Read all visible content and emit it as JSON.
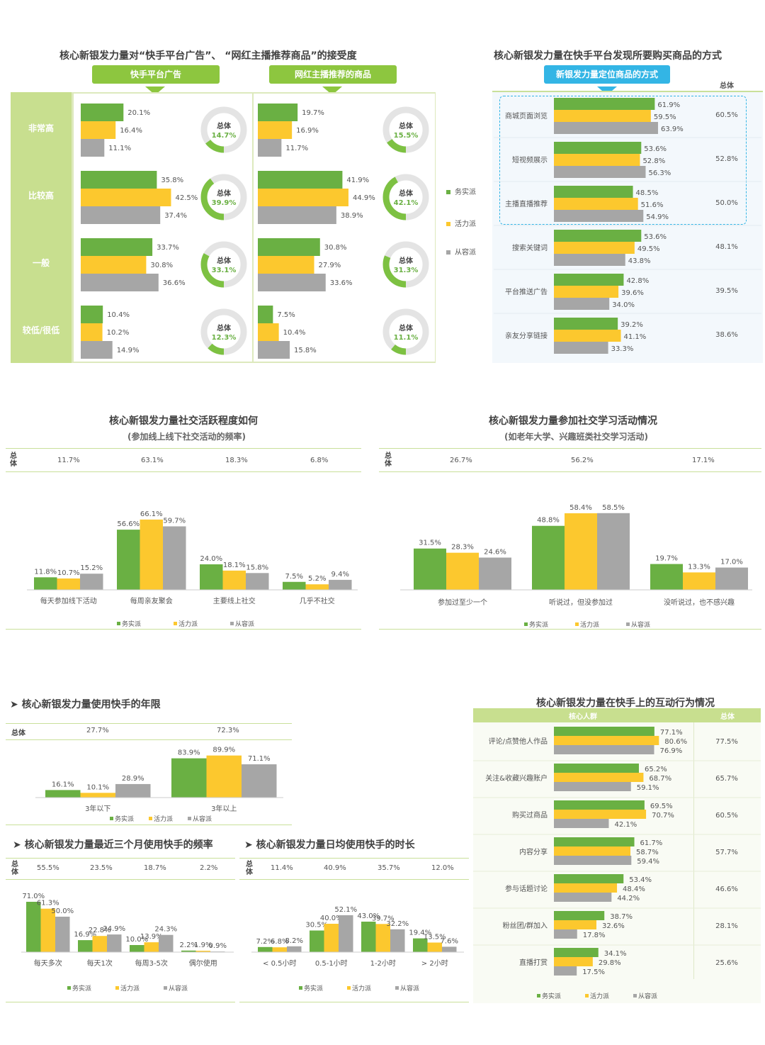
{
  "colors": {
    "work": "#6ab043",
    "vital": "#fcc82e",
    "content": "#a6a6a6",
    "accent": "#8dc63f",
    "blue": "#33b5e5",
    "panel": "#dde9bd"
  },
  "legend": [
    "务实派",
    "活力派",
    "从容派"
  ],
  "panel1": {
    "title": "核心新银发力量对“快手平台广告”、 “网红主播推荐商品”的接受度",
    "col_headers": [
      "快手平台广告",
      "网红主播推荐的商品"
    ],
    "rows": [
      "非常高",
      "比较高",
      "一般",
      "较低/很低"
    ],
    "total_label": "总体"
  },
  "panel2": {
    "title": "核心新银发力量在快手平台发现所要购买商品的方式",
    "header": "新银发力量定位商品的方式",
    "total_header": "总体",
    "categories": [
      "商城页面浏览",
      "短视频展示",
      "主播直播推荐",
      "搜索关键词",
      "平台推送广告",
      "亲友分享链接"
    ],
    "totals": [
      "60.5%",
      "52.8%",
      "50.0%",
      "48.1%",
      "39.5%",
      "38.6%"
    ]
  },
  "panel3": {
    "title": "核心新银发力量社交活跃程度如何",
    "subtitle": "(参加线上线下社交活动的频率)",
    "total_label": "总体",
    "totals": [
      "11.7%",
      "63.1%",
      "18.3%",
      "6.8%"
    ]
  },
  "panel4": {
    "title": "核心新银发力量参加社交学习活动情况",
    "subtitle": "(如老年大学、兴趣班类社交学习活动)",
    "total_label": "总体",
    "totals": [
      "26.7%",
      "56.2%",
      "17.1%"
    ]
  },
  "panel5": {
    "title": "核心新银发力量使用快手的年限",
    "total_label": "总体",
    "totals": [
      "27.7%",
      "72.3%"
    ]
  },
  "panel6": {
    "title": "核心新银发力量最近三个月使用快手的频率",
    "total_label": "总体",
    "totals": [
      "55.5%",
      "23.5%",
      "18.7%",
      "2.2%"
    ]
  },
  "panel7": {
    "title": "核心新银发力量日均使用快手的时长",
    "total_label": "总体",
    "totals": [
      "11.4%",
      "40.9%",
      "35.7%",
      "12.0%"
    ]
  },
  "panel8": {
    "title": "核心新银发力量在快手上的互动行为情况",
    "header_core": "核心人群",
    "header_total": "总体",
    "categories": [
      "评论/点赞他人作品",
      "关注&收藏兴趣账户",
      "购买过商品",
      "内容分享",
      "参与话题讨论",
      "粉丝团/群加入",
      "直播打赏"
    ],
    "totals": [
      "77.5%",
      "65.7%",
      "60.5%",
      "57.7%",
      "46.6%",
      "28.1%",
      "25.6%"
    ]
  },
  "chart_data": [
    {
      "type": "bar",
      "title": "快手平台广告",
      "categories": [
        "非常高",
        "比较高",
        "一般",
        "较低/很低"
      ],
      "series": [
        {
          "name": "务实派",
          "values": [
            20.1,
            35.8,
            33.7,
            10.4
          ]
        },
        {
          "name": "活力派",
          "values": [
            16.4,
            42.5,
            30.8,
            10.2
          ]
        },
        {
          "name": "从容派",
          "values": [
            11.1,
            37.4,
            36.6,
            14.9
          ]
        }
      ],
      "totals": [
        14.7,
        39.9,
        33.1,
        12.3
      ]
    },
    {
      "type": "bar",
      "title": "网红主播推荐的商品",
      "categories": [
        "非常高",
        "比较高",
        "一般",
        "较低/很低"
      ],
      "series": [
        {
          "name": "务实派",
          "values": [
            19.7,
            41.9,
            30.8,
            7.5
          ]
        },
        {
          "name": "活力派",
          "values": [
            16.9,
            44.9,
            27.9,
            10.4
          ]
        },
        {
          "name": "从容派",
          "values": [
            11.7,
            38.9,
            33.6,
            15.8
          ]
        }
      ],
      "totals": [
        15.5,
        42.1,
        31.3,
        11.1
      ]
    },
    {
      "type": "bar",
      "title": "新银发力量定位商品的方式",
      "categories": [
        "商城页面浏览",
        "短视频展示",
        "主播直播推荐",
        "搜索关键词",
        "平台推送广告",
        "亲友分享链接"
      ],
      "series": [
        {
          "name": "务实派",
          "values": [
            61.9,
            53.6,
            48.5,
            53.6,
            42.8,
            39.2
          ]
        },
        {
          "name": "活力派",
          "values": [
            59.5,
            52.8,
            51.6,
            49.5,
            39.6,
            41.1
          ]
        },
        {
          "name": "从容派",
          "values": [
            63.9,
            56.3,
            54.9,
            43.8,
            34.0,
            33.3
          ]
        }
      ]
    },
    {
      "type": "bar",
      "title": "核心新银发力量社交活跃程度如何",
      "categories": [
        "每天参加线下活动",
        "每周亲友聚会",
        "主要线上社交",
        "几乎不社交"
      ],
      "series": [
        {
          "name": "务实派",
          "values": [
            11.8,
            56.6,
            24.0,
            7.5
          ]
        },
        {
          "name": "活力派",
          "values": [
            10.7,
            66.1,
            18.1,
            5.2
          ]
        },
        {
          "name": "从容派",
          "values": [
            15.2,
            59.7,
            15.8,
            9.4
          ]
        }
      ]
    },
    {
      "type": "bar",
      "title": "核心新银发力量参加社交学习活动情况",
      "categories": [
        "参加过至少一个",
        "听说过，但没参加过",
        "没听说过，也不感兴趣"
      ],
      "series": [
        {
          "name": "务实派",
          "values": [
            31.5,
            48.8,
            19.7
          ]
        },
        {
          "name": "活力派",
          "values": [
            28.3,
            58.4,
            13.3
          ]
        },
        {
          "name": "从容派",
          "values": [
            24.6,
            58.5,
            17.0
          ]
        }
      ]
    },
    {
      "type": "bar",
      "title": "核心新银发力量使用快手的年限",
      "categories": [
        "3年以下",
        "3年以上"
      ],
      "series": [
        {
          "name": "务实派",
          "values": [
            16.1,
            83.9
          ]
        },
        {
          "name": "活力派",
          "values": [
            10.1,
            89.9
          ]
        },
        {
          "name": "从容派",
          "values": [
            28.9,
            71.1
          ]
        }
      ]
    },
    {
      "type": "bar",
      "title": "核心新银发力量最近三个月使用快手的频率",
      "categories": [
        "每天多次",
        "每天1次",
        "每周3-5次",
        "偶尔使用"
      ],
      "series": [
        {
          "name": "务实派",
          "values": [
            71.0,
            16.9,
            10.0,
            2.2
          ]
        },
        {
          "name": "活力派",
          "values": [
            61.3,
            22.8,
            13.9,
            1.9
          ]
        },
        {
          "name": "从容派",
          "values": [
            50.0,
            24.9,
            24.3,
            0.9
          ]
        }
      ]
    },
    {
      "type": "bar",
      "title": "核心新银发力量日均使用快手的时长",
      "categories": [
        "< 0.5小时",
        "0.5-1小时",
        "1-2小时",
        "> 2小时"
      ],
      "series": [
        {
          "name": "务实派",
          "values": [
            7.2,
            30.5,
            43.0,
            19.4
          ]
        },
        {
          "name": "活力派",
          "values": [
            6.8,
            40.0,
            39.7,
            13.5
          ]
        },
        {
          "name": "从容派",
          "values": [
            8.2,
            52.1,
            32.2,
            7.6
          ]
        }
      ]
    },
    {
      "type": "bar",
      "title": "核心新银发力量在快手上的互动行为情况",
      "categories": [
        "评论/点赞他人作品",
        "关注&收藏兴趣账户",
        "购买过商品",
        "内容分享",
        "参与话题讨论",
        "粉丝团/群加入",
        "直播打赏"
      ],
      "series": [
        {
          "name": "务实派",
          "values": [
            77.1,
            65.2,
            69.5,
            61.7,
            53.4,
            38.7,
            34.1
          ]
        },
        {
          "name": "活力派",
          "values": [
            80.6,
            68.7,
            70.7,
            58.7,
            48.4,
            32.6,
            29.8
          ]
        },
        {
          "name": "从容派",
          "values": [
            76.9,
            59.1,
            42.1,
            59.4,
            44.2,
            17.8,
            17.5
          ]
        }
      ]
    }
  ]
}
